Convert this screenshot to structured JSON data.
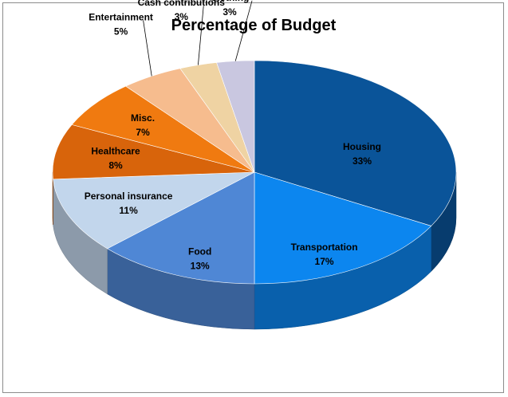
{
  "chart_data": {
    "type": "pie",
    "title": "Percentage of Budget",
    "legend": "none",
    "slices": [
      {
        "label": "Housing",
        "value": 33,
        "display": "33%",
        "color": "#0a5499"
      },
      {
        "label": "Transportation",
        "value": 17,
        "display": "17%",
        "color": "#0c86ef"
      },
      {
        "label": "Food",
        "value": 13,
        "display": "13%",
        "color": "#4f87d5"
      },
      {
        "label": "Personal insurance",
        "value": 11,
        "display": "11%",
        "color": "#c2d6ec"
      },
      {
        "label": "Healthcare",
        "value": 8,
        "display": "8%",
        "color": "#d8640b"
      },
      {
        "label": "Misc.",
        "value": 7,
        "display": "7%",
        "color": "#f07a10"
      },
      {
        "label": "Entertainment",
        "value": 5,
        "display": "5%",
        "color": "#f6bc8e"
      },
      {
        "label": "Cash contributions",
        "value": 3,
        "display": "3%",
        "color": "#efd3a3"
      },
      {
        "label": "Clothing",
        "value": 3,
        "display": "3%",
        "color": "#c9c7e0"
      }
    ]
  }
}
